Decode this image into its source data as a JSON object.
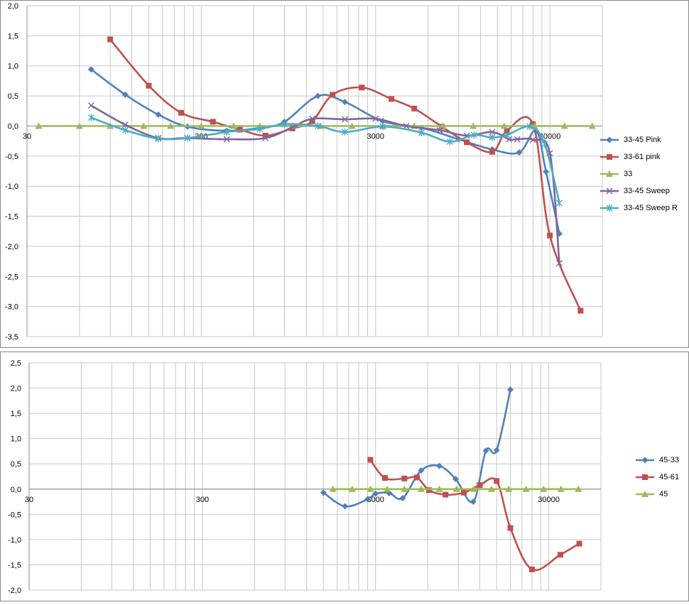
{
  "colors": {
    "blue": "#4f81bd",
    "red": "#c0504d",
    "green": "#9bbb59",
    "purple": "#8064a2",
    "teal": "#4bacc6",
    "grid": "#c8c8c8",
    "frame": "#888888"
  },
  "chart_data": [
    {
      "type": "line",
      "x_scale": "log",
      "xlim": [
        30,
        60000
      ],
      "ylim": [
        -3.5,
        2.0
      ],
      "y_ticks": [
        2.0,
        1.5,
        1.0,
        0.5,
        0.0,
        -0.5,
        -1.0,
        -1.5,
        -2.0,
        -2.5,
        -3.0,
        -3.5
      ],
      "y_tick_labels": [
        "2,0",
        "1,5",
        "1,0",
        "0,5",
        "0,0",
        "-0,5",
        "-1,0",
        "-1,5",
        "-2,0",
        "-2,5",
        "-3,0",
        "-3,5"
      ],
      "x_tick_labels": [
        {
          "x": 30,
          "label": "30"
        },
        {
          "x": 300,
          "label": "300"
        },
        {
          "x": 3000,
          "label": "3000"
        },
        {
          "x": 30000,
          "label": "30000"
        }
      ],
      "legend_position": "right",
      "series": [
        {
          "name": "33-45 Pink",
          "color": "blue",
          "marker": "diamond",
          "x": [
            70,
            110,
            170,
            250,
            420,
            650,
            900,
            1400,
            2000,
            3300,
            5500,
            9000,
            14000,
            20000,
            25000,
            28500,
            34000
          ],
          "y": [
            0.94,
            0.52,
            0.19,
            -0.01,
            -0.08,
            -0.03,
            0.07,
            0.5,
            0.4,
            0.08,
            -0.03,
            -0.22,
            -0.39,
            -0.44,
            -0.08,
            -0.76,
            -1.79
          ]
        },
        {
          "name": "33-61 pink",
          "color": "red",
          "marker": "square",
          "x": [
            90,
            150,
            230,
            350,
            500,
            700,
            1000,
            1300,
            1700,
            2500,
            3700,
            5000,
            7200,
            10000,
            14000,
            17000,
            24000,
            30000,
            45000
          ],
          "y": [
            1.44,
            0.67,
            0.22,
            0.07,
            -0.06,
            -0.16,
            -0.04,
            0.08,
            0.52,
            0.64,
            0.45,
            0.29,
            -0.01,
            -0.27,
            -0.43,
            -0.08,
            0.03,
            -1.82,
            -3.07
          ]
        },
        {
          "name": "33",
          "color": "green",
          "marker": "triangle",
          "x": [
            35,
            60,
            90,
            140,
            200,
            300,
            460,
            650,
            1000,
            1450,
            2200,
            3300,
            5000,
            7300,
            10900,
            16400,
            24400,
            36400,
            52500
          ],
          "y": [
            0,
            0,
            0,
            0,
            0,
            0,
            0,
            0,
            0,
            0,
            0,
            0,
            0,
            0,
            0,
            0,
            0,
            0,
            0
          ]
        },
        {
          "name": "33-45 Sweep",
          "color": "purple",
          "marker": "x",
          "x": [
            70,
            110,
            170,
            250,
            420,
            700,
            1000,
            1300,
            2000,
            3000,
            4500,
            7000,
            10000,
            14000,
            17500,
            19500,
            24000,
            30000,
            34000
          ],
          "y": [
            0.34,
            0.02,
            -0.2,
            -0.2,
            -0.22,
            -0.2,
            -0.02,
            0.12,
            0.11,
            0.12,
            0.0,
            -0.07,
            -0.16,
            -0.1,
            -0.22,
            -0.22,
            -0.23,
            -0.45,
            -2.28
          ]
        },
        {
          "name": "33-45 Sweep R",
          "color": "teal",
          "marker": "star",
          "x": [
            70,
            110,
            170,
            250,
            420,
            650,
            900,
            1400,
            2000,
            3300,
            5500,
            8000,
            11000,
            14000,
            17000,
            23000,
            28000,
            34000
          ],
          "y": [
            0.14,
            -0.07,
            -0.21,
            -0.2,
            -0.1,
            -0.05,
            0.03,
            0.0,
            -0.1,
            -0.01,
            -0.11,
            -0.26,
            -0.15,
            -0.19,
            -0.15,
            -0.01,
            -0.3,
            -1.28
          ]
        }
      ]
    },
    {
      "type": "line",
      "x_scale": "log",
      "xlim": [
        30,
        60000
      ],
      "ylim": [
        -2.0,
        2.5
      ],
      "y_ticks": [
        2.5,
        2.0,
        1.5,
        1.0,
        0.5,
        0.0,
        -0.5,
        -1.0,
        -1.5,
        -2.0
      ],
      "y_tick_labels": [
        "2,5",
        "2,0",
        "1,5",
        "1,0",
        "0,5",
        "0,0",
        "-0,5",
        "-1,0",
        "-1,5",
        "-2,0"
      ],
      "x_tick_labels": [
        {
          "x": 30,
          "label": "30"
        },
        {
          "x": 300,
          "label": "300"
        },
        {
          "x": 3000,
          "label": "3000"
        },
        {
          "x": 30000,
          "label": "30000"
        }
      ],
      "legend_position": "right",
      "series": [
        {
          "name": "45-33",
          "color": "blue",
          "marker": "diamond",
          "x": [
            1500,
            2000,
            2700,
            3000,
            3600,
            4300,
            5500,
            7000,
            8700,
            11000,
            13000,
            15000,
            18000
          ],
          "y": [
            -0.07,
            -0.34,
            -0.2,
            -0.09,
            -0.08,
            -0.18,
            0.37,
            0.46,
            0.2,
            -0.25,
            0.76,
            0.77,
            1.97
          ]
        },
        {
          "name": "45-61",
          "color": "red",
          "marker": "square",
          "x": [
            2800,
            3400,
            4400,
            5200,
            6100,
            7600,
            9700,
            12000,
            15000,
            18000,
            24000,
            35000,
            45000
          ],
          "y": [
            0.58,
            0.22,
            0.21,
            0.23,
            -0.02,
            -0.11,
            -0.07,
            0.08,
            0.16,
            -0.77,
            -1.59,
            -1.3,
            -1.08
          ]
        },
        {
          "name": "45",
          "color": "green",
          "marker": "triangle",
          "x": [
            1700,
            2200,
            2800,
            3500,
            4400,
            5500,
            7000,
            8800,
            11100,
            14000,
            17600,
            22200,
            28000,
            35300,
            44500
          ],
          "y": [
            0,
            0,
            0,
            0,
            0,
            0,
            0,
            0,
            0,
            0,
            0,
            0,
            0,
            0,
            0
          ]
        }
      ]
    }
  ]
}
